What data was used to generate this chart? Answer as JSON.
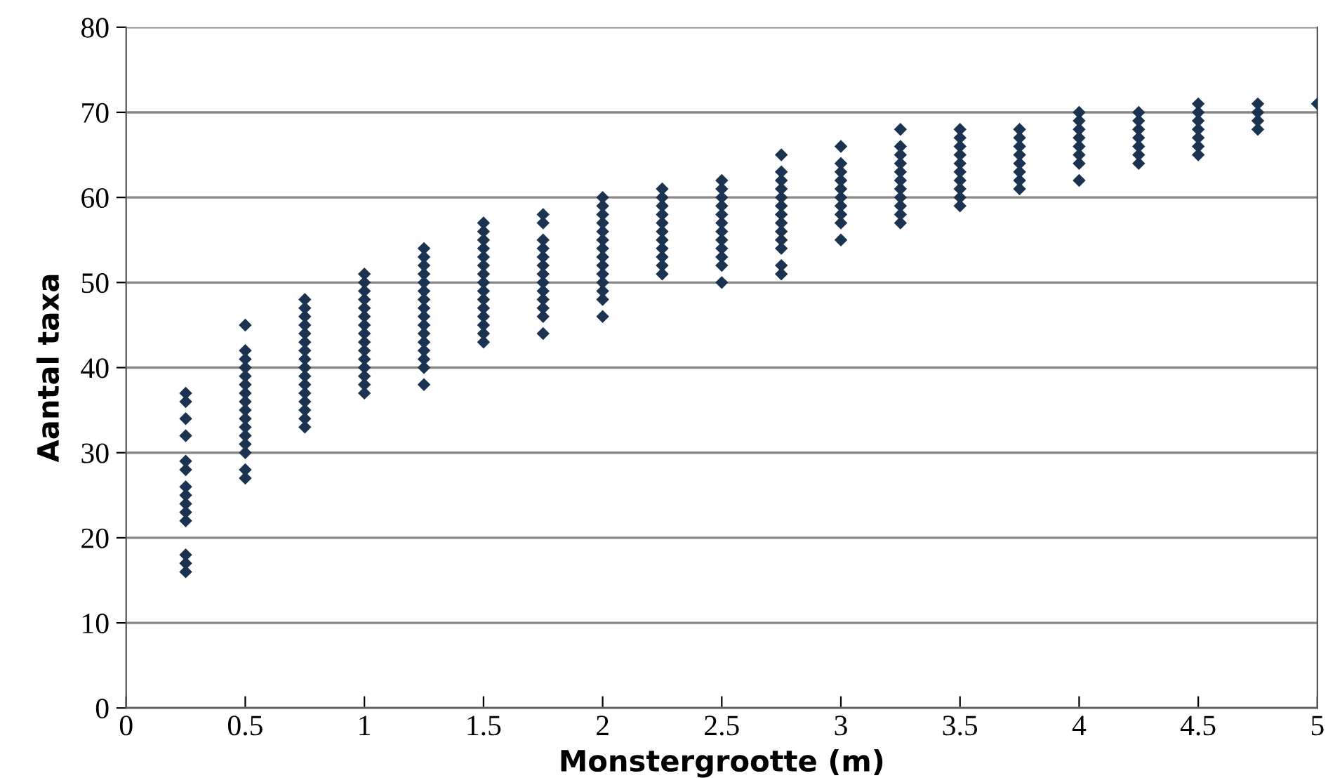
{
  "chart_data": {
    "type": "scatter",
    "xlabel": "Monstergrootte (m)",
    "ylabel": "Aantal taxa",
    "xlim": [
      0,
      5
    ],
    "ylim": [
      0,
      80
    ],
    "xticks": [
      0,
      0.5,
      1,
      1.5,
      2,
      2.5,
      3,
      3.5,
      4,
      4.5,
      5
    ],
    "yticks": [
      0,
      10,
      20,
      30,
      40,
      50,
      60,
      70,
      80
    ],
    "grid": "y",
    "marker": "diamond",
    "legend": false,
    "series": [
      {
        "color": "#1b3350",
        "x": [
          0.25,
          0.25,
          0.25,
          0.25,
          0.25,
          0.25,
          0.25,
          0.25,
          0.25,
          0.25,
          0.25,
          0.25,
          0.25,
          0.25,
          0.5,
          0.5,
          0.5,
          0.5,
          0.5,
          0.5,
          0.5,
          0.5,
          0.5,
          0.5,
          0.5,
          0.5,
          0.5,
          0.5,
          0.5,
          0.5,
          0.75,
          0.75,
          0.75,
          0.75,
          0.75,
          0.75,
          0.75,
          0.75,
          0.75,
          0.75,
          0.75,
          0.75,
          0.75,
          0.75,
          0.75,
          0.75,
          1,
          1,
          1,
          1,
          1,
          1,
          1,
          1,
          1,
          1,
          1,
          1,
          1,
          1,
          1,
          1.25,
          1.25,
          1.25,
          1.25,
          1.25,
          1.25,
          1.25,
          1.25,
          1.25,
          1.25,
          1.25,
          1.25,
          1.25,
          1.25,
          1.25,
          1.25,
          1.5,
          1.5,
          1.5,
          1.5,
          1.5,
          1.5,
          1.5,
          1.5,
          1.5,
          1.5,
          1.5,
          1.5,
          1.5,
          1.5,
          1.5,
          1.75,
          1.75,
          1.75,
          1.75,
          1.75,
          1.75,
          1.75,
          1.75,
          1.75,
          1.75,
          1.75,
          1.75,
          1.75,
          2,
          2,
          2,
          2,
          2,
          2,
          2,
          2,
          2,
          2,
          2,
          2,
          2,
          2,
          2.25,
          2.25,
          2.25,
          2.25,
          2.25,
          2.25,
          2.25,
          2.25,
          2.25,
          2.25,
          2.25,
          2.5,
          2.5,
          2.5,
          2.5,
          2.5,
          2.5,
          2.5,
          2.5,
          2.5,
          2.5,
          2.5,
          2.5,
          2.75,
          2.75,
          2.75,
          2.75,
          2.75,
          2.75,
          2.75,
          2.75,
          2.75,
          2.75,
          2.75,
          2.75,
          2.75,
          3,
          3,
          3,
          3,
          3,
          3,
          3,
          3,
          3,
          3,
          3.25,
          3.25,
          3.25,
          3.25,
          3.25,
          3.25,
          3.25,
          3.25,
          3.25,
          3.25,
          3.25,
          3.5,
          3.5,
          3.5,
          3.5,
          3.5,
          3.5,
          3.5,
          3.5,
          3.5,
          3.5,
          3.75,
          3.75,
          3.75,
          3.75,
          3.75,
          3.75,
          3.75,
          3.75,
          4,
          4,
          4,
          4,
          4,
          4,
          4,
          4,
          4.25,
          4.25,
          4.25,
          4.25,
          4.25,
          4.25,
          4.25,
          4.5,
          4.5,
          4.5,
          4.5,
          4.5,
          4.5,
          4.5,
          4.75,
          4.75,
          4.75,
          4.75,
          5
        ],
        "values": [
          16,
          17,
          18,
          22,
          23,
          24,
          25,
          26,
          28,
          29,
          32,
          34,
          36,
          37,
          27,
          28,
          30,
          31,
          32,
          33,
          34,
          35,
          36,
          37,
          38,
          39,
          40,
          41,
          42,
          45,
          33,
          34,
          35,
          36,
          37,
          38,
          39,
          40,
          41,
          42,
          43,
          44,
          45,
          46,
          47,
          48,
          37,
          38,
          39,
          40,
          41,
          42,
          43,
          44,
          45,
          46,
          47,
          48,
          49,
          50,
          51,
          38,
          40,
          41,
          42,
          43,
          44,
          45,
          46,
          47,
          48,
          49,
          50,
          51,
          52,
          53,
          54,
          43,
          44,
          45,
          46,
          47,
          48,
          49,
          50,
          51,
          52,
          53,
          54,
          55,
          56,
          57,
          44,
          46,
          47,
          48,
          49,
          50,
          51,
          52,
          53,
          54,
          55,
          57,
          58,
          46,
          48,
          49,
          50,
          51,
          52,
          53,
          54,
          55,
          56,
          57,
          58,
          59,
          60,
          51,
          52,
          53,
          54,
          55,
          56,
          57,
          58,
          59,
          60,
          61,
          50,
          52,
          53,
          54,
          55,
          56,
          57,
          58,
          59,
          60,
          61,
          62,
          51,
          52,
          54,
          55,
          56,
          57,
          58,
          59,
          60,
          61,
          62,
          63,
          65,
          55,
          57,
          58,
          59,
          60,
          61,
          62,
          63,
          64,
          66,
          57,
          58,
          59,
          60,
          61,
          62,
          63,
          64,
          65,
          66,
          68,
          59,
          60,
          61,
          62,
          63,
          64,
          65,
          66,
          67,
          68,
          61,
          62,
          63,
          64,
          65,
          66,
          67,
          68,
          62,
          64,
          65,
          66,
          67,
          68,
          69,
          70,
          64,
          65,
          66,
          67,
          68,
          69,
          70,
          65,
          66,
          67,
          68,
          69,
          70,
          71,
          68,
          69,
          70,
          71,
          71
        ]
      }
    ]
  }
}
